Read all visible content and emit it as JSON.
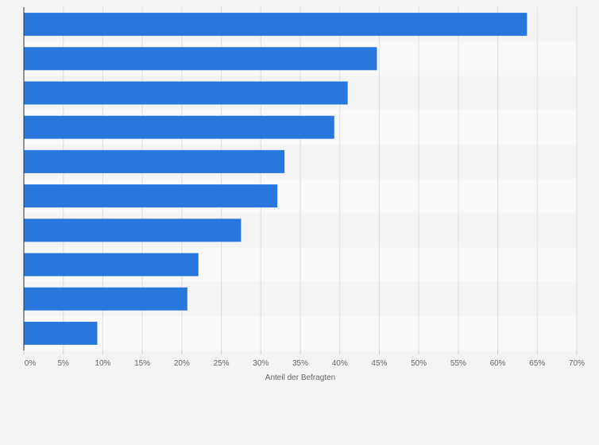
{
  "chart_data": {
    "type": "bar",
    "orientation": "horizontal",
    "categories": [
      "",
      "",
      "",
      "",
      "",
      "",
      "",
      "",
      "",
      ""
    ],
    "values": [
      63.7,
      44.7,
      41.0,
      39.3,
      33.0,
      32.1,
      27.5,
      22.1,
      20.7,
      9.3
    ],
    "x_ticks": [
      "0%",
      "5%",
      "10%",
      "15%",
      "20%",
      "25%",
      "30%",
      "35%",
      "40%",
      "45%",
      "50%",
      "55%",
      "60%",
      "65%",
      "70%"
    ],
    "xlim": [
      0,
      70
    ],
    "xlabel": "Anteil der Befragten",
    "ylabel": "",
    "title": "",
    "grid": true,
    "bar_color": "#2777dd",
    "band_colors": [
      "#f4f4f4",
      "#f9f9f9"
    ],
    "grid_color": "#dddddd",
    "axis_color": "#333333",
    "text_color": "#666666"
  }
}
